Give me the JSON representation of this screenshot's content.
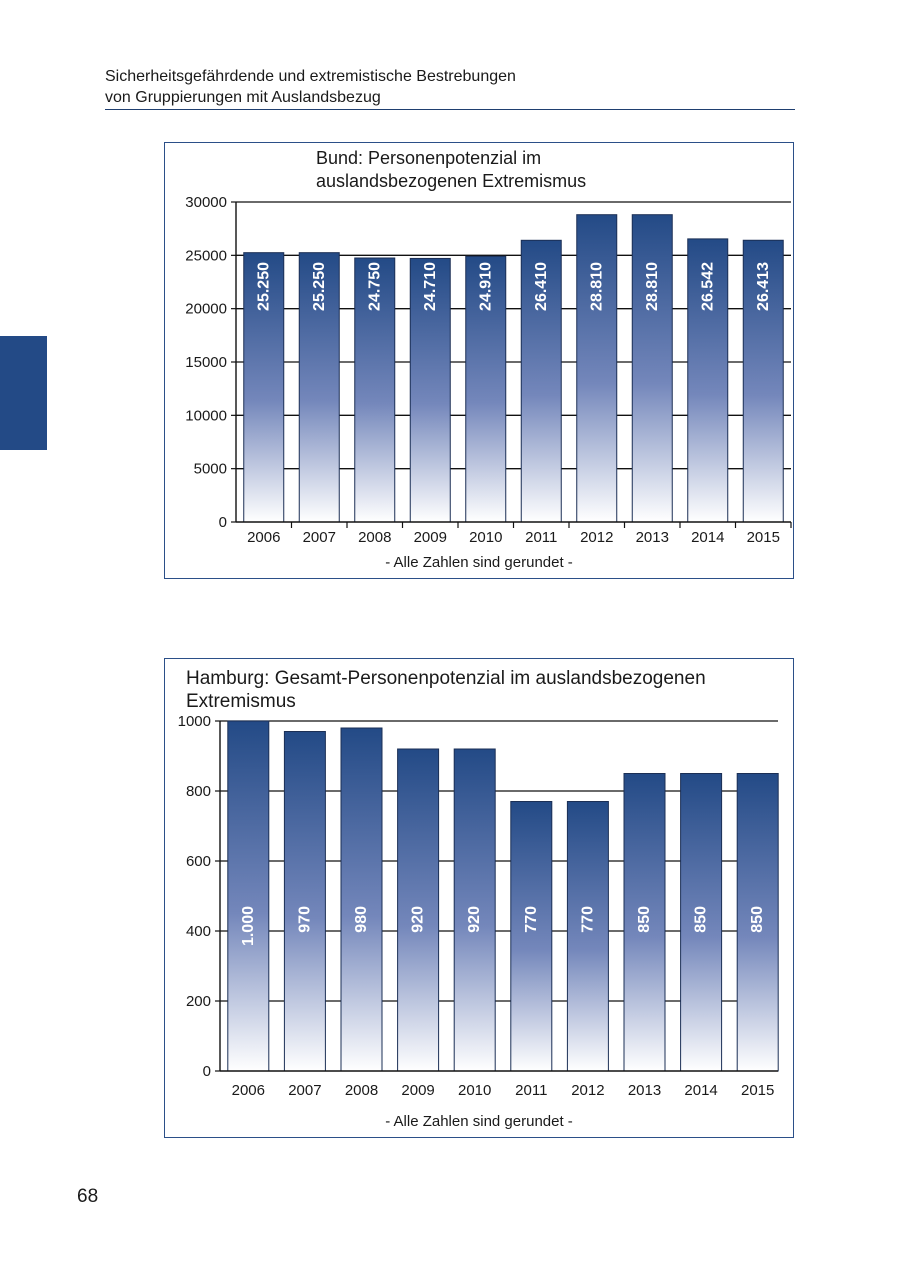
{
  "header": {
    "line1": "Sicherheitsgefährdende und extremistische Bestrebungen",
    "line2": "von Gruppierungen mit Auslandsbezug"
  },
  "page_number": "68",
  "colors": {
    "bar_top": "#234a86",
    "bar_bottom": "#ffffff",
    "frame": "#2b4f88",
    "side_tab": "#234a86"
  },
  "chart_data": [
    {
      "type": "bar",
      "title_lines": [
        "Bund: Personenpotenzial im",
        "auslandsbezogenen Extremismus"
      ],
      "note": "- Alle Zahlen sind gerundet -",
      "categories": [
        "2006",
        "2007",
        "2008",
        "2009",
        "2010",
        "2011",
        "2012",
        "2013",
        "2014",
        "2015"
      ],
      "values": [
        25250,
        25250,
        24750,
        24710,
        24910,
        26410,
        28810,
        28810,
        26542,
        26413
      ],
      "value_labels": [
        "25.250",
        "25.250",
        "24.750",
        "24.710",
        "24.910",
        "26.410",
        "28.810",
        "28.810",
        "26.542",
        "26.413"
      ],
      "yticks": [
        0,
        5000,
        10000,
        15000,
        20000,
        25000,
        30000
      ],
      "ytick_labels": [
        "0",
        "5000",
        "10000",
        "15000",
        "20000",
        "25000",
        "30000"
      ],
      "ylim": [
        0,
        30000
      ],
      "xlabel": "",
      "ylabel": "",
      "grid": true
    },
    {
      "type": "bar",
      "title_lines": [
        "Hamburg: Gesamt-Personenpotenzial im auslandsbezogenen",
        "Extremismus"
      ],
      "note": "- Alle Zahlen sind gerundet -",
      "categories": [
        "2006",
        "2007",
        "2008",
        "2009",
        "2010",
        "2011",
        "2012",
        "2013",
        "2014",
        "2015"
      ],
      "values": [
        1000,
        970,
        980,
        920,
        920,
        770,
        770,
        850,
        850,
        850
      ],
      "value_labels": [
        "1.000",
        "970",
        "980",
        "920",
        "920",
        "770",
        "770",
        "850",
        "850",
        "850"
      ],
      "yticks": [
        0,
        200,
        400,
        600,
        800,
        1000
      ],
      "ytick_labels": [
        "0",
        "200",
        "400",
        "600",
        "800",
        "1000"
      ],
      "ylim": [
        0,
        1000
      ],
      "xlabel": "",
      "ylabel": "",
      "grid": true
    }
  ]
}
